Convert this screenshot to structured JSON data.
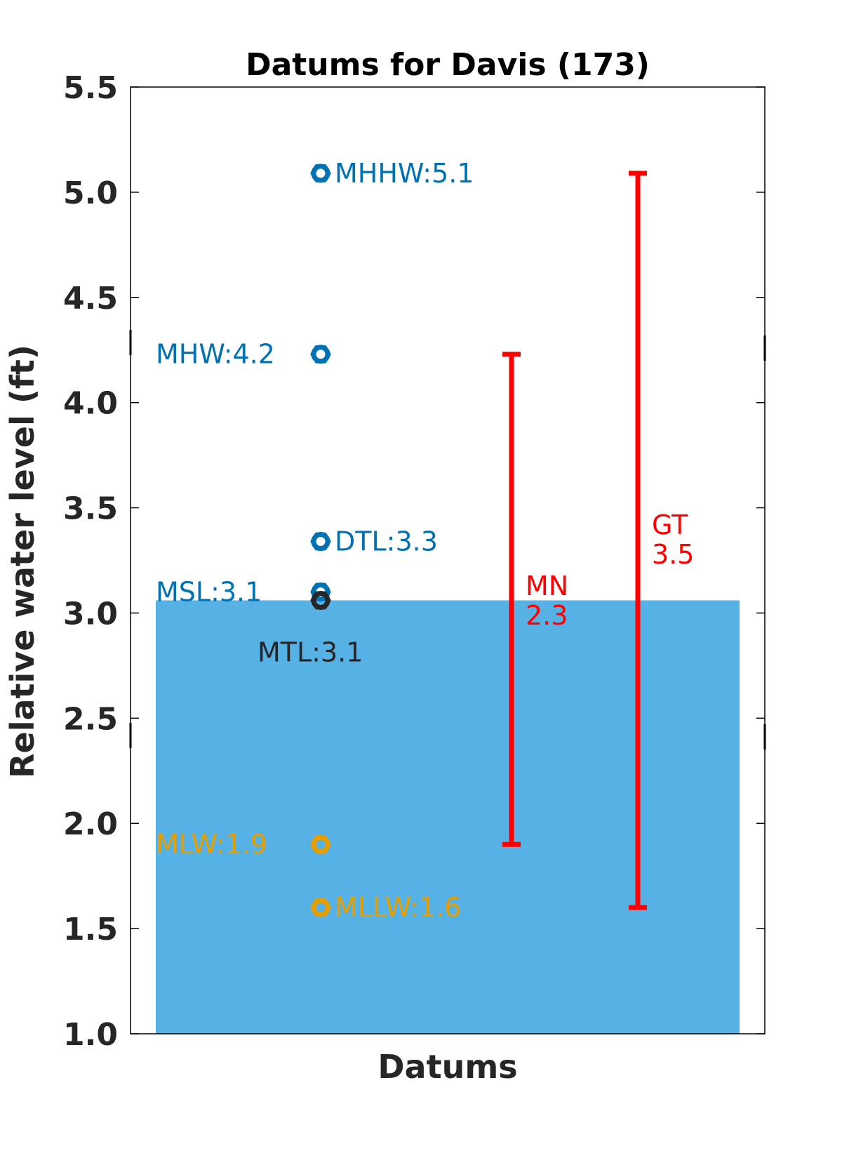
{
  "chart_data": {
    "type": "scatter",
    "title": "Datums for Davis (173)",
    "xlabel": "Datums",
    "ylabel": "Relative water level (ft)",
    "ylim": [
      1.0,
      5.5
    ],
    "yticks": [
      "1.0",
      "1.5",
      "2.0",
      "2.5",
      "3.0",
      "3.5",
      "4.0",
      "4.5",
      "5.0",
      "5.5"
    ],
    "grid": false,
    "background_fill": {
      "to_level": 3.06,
      "color": "#56B1E5"
    },
    "datums": [
      {
        "name": "MHHW",
        "value": 5.09,
        "label": "MHHW:5.1",
        "color": "#0072B2",
        "label_side": "right"
      },
      {
        "name": "MHW",
        "value": 4.23,
        "label": "MHW:4.2",
        "color": "#0072B2",
        "label_side": "left"
      },
      {
        "name": "DTL",
        "value": 3.34,
        "label": "DTL:3.3",
        "color": "#0072B2",
        "label_side": "right"
      },
      {
        "name": "MSL",
        "value": 3.1,
        "label": "MSL:3.1",
        "color": "#0072B2",
        "label_side": "left"
      },
      {
        "name": "MTL",
        "value": 3.06,
        "label": "MTL:3.1",
        "color": "#262626",
        "label_side": "below"
      },
      {
        "name": "MLW",
        "value": 1.9,
        "label": "MLW:1.9",
        "color": "#E69F00",
        "label_side": "left"
      },
      {
        "name": "MLLW",
        "value": 1.6,
        "label": "MLLW:1.6",
        "color": "#E69F00",
        "label_side": "right"
      }
    ],
    "ranges": [
      {
        "name": "MN",
        "low": 1.9,
        "high": 4.23,
        "label_line1": "MN",
        "label_line2": "2.3",
        "color": "#FF0000"
      },
      {
        "name": "GT",
        "low": 1.6,
        "high": 5.09,
        "label_line1": "GT",
        "label_line2": "3.5",
        "color": "#FF0000"
      }
    ]
  }
}
